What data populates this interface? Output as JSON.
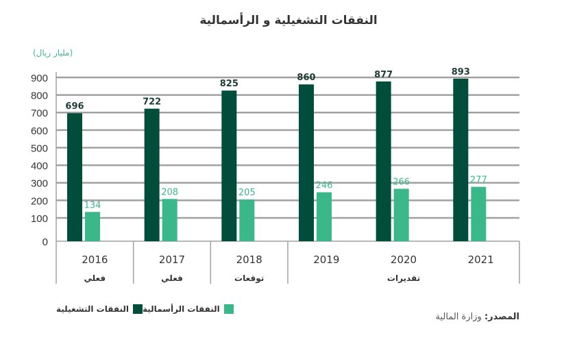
{
  "chart_data": {
    "type": "bar",
    "title": "النفقات التشغيلية و الرأسمالية",
    "ylabel": "(مليار ريال)",
    "categories": [
      "2016",
      "2017",
      "2018",
      "2019",
      "2020",
      "2021"
    ],
    "category_groups": [
      {
        "label": "فعلي",
        "years": [
          "2016"
        ]
      },
      {
        "label": "فعلي",
        "years": [
          "2017"
        ]
      },
      {
        "label": "توقعات",
        "years": [
          "2018"
        ]
      },
      {
        "label": "تقديرات",
        "years": [
          "2019",
          "2020",
          "2021"
        ]
      }
    ],
    "series": [
      {
        "name": "النفقات التشغيلية",
        "color": "#004d3b",
        "values": [
          696,
          722,
          825,
          860,
          877,
          893
        ]
      },
      {
        "name": "النفقات الرأسمالية",
        "color": "#3bb88a",
        "values": [
          134,
          208,
          205,
          246,
          266,
          277
        ]
      }
    ],
    "yticks": [
      0,
      100,
      200,
      300,
      400,
      500,
      600,
      700,
      800,
      900
    ],
    "ylim": [
      0,
      900
    ],
    "grid": true,
    "legend": "bottom-left"
  },
  "source": {
    "label": "المصدر:",
    "value": " وزارة المالية"
  }
}
